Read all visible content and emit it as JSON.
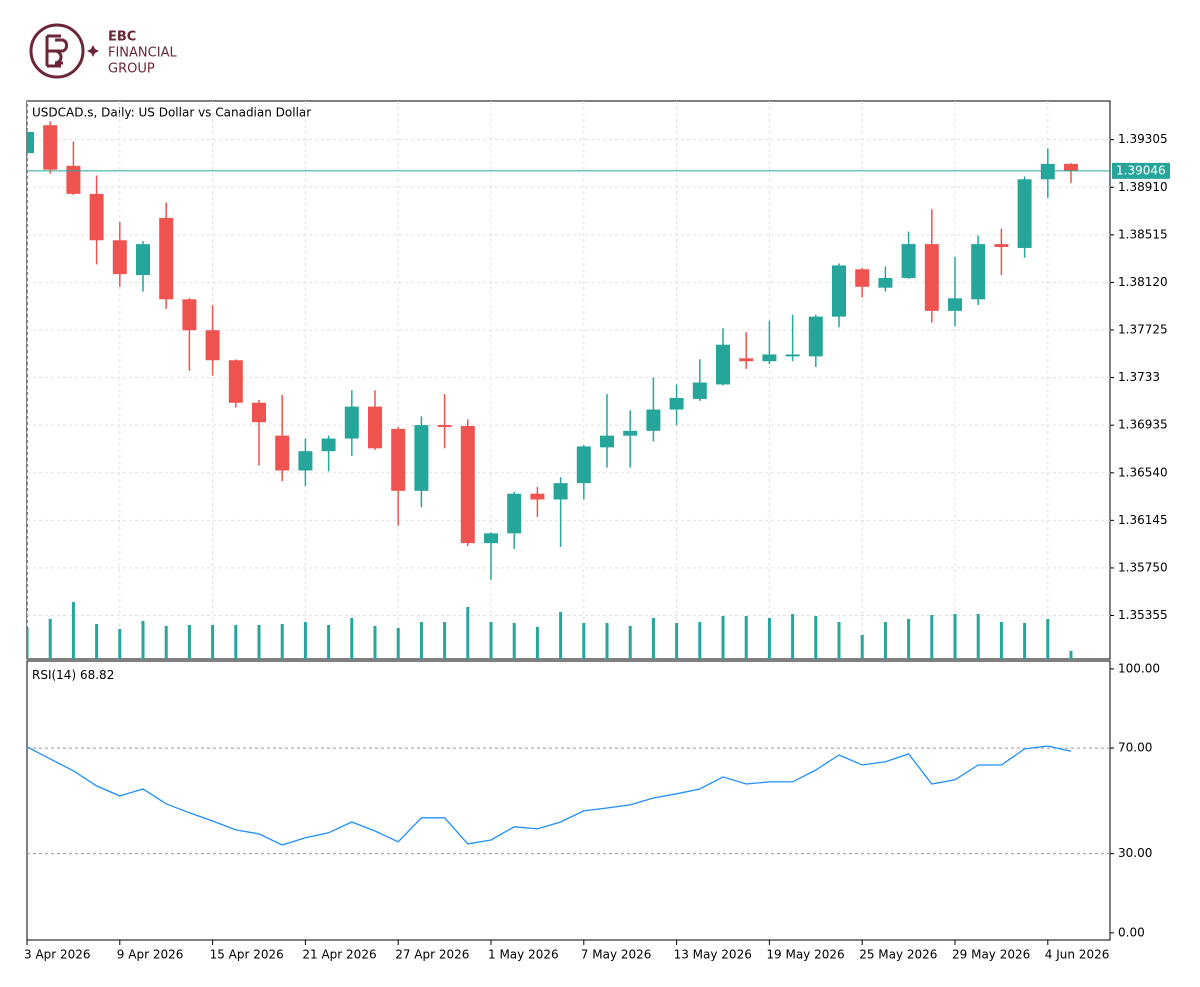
{
  "logo": {
    "lines": [
      "EBC",
      "FINANCIAL",
      "GROUP"
    ]
  },
  "chart_data": [
    {
      "type": "candlestick",
      "title": "USDCAD.s, Daily:  US Dollar vs Canadian Dollar",
      "categories": [
        "3 Apr 2026",
        null,
        null,
        null,
        "9 Apr 2026",
        null,
        null,
        null,
        "15 Apr 2026",
        null,
        null,
        null,
        "21 Apr 2026",
        null,
        null,
        null,
        "27 Apr 2026",
        null,
        null,
        null,
        "1 May 2026",
        null,
        null,
        null,
        "7 May 2026",
        null,
        null,
        null,
        "13 May 2026",
        null,
        null,
        null,
        "19 May 2026",
        null,
        null,
        null,
        "25 May 2026",
        null,
        null,
        null,
        "29 May 2026",
        null,
        null,
        null,
        "4 Jun 2026",
        null
      ],
      "open": [
        1.39193,
        1.39425,
        1.39088,
        1.38855,
        1.3847,
        1.38181,
        1.38655,
        1.3798,
        1.37723,
        1.37474,
        1.37121,
        1.36848,
        1.36559,
        1.36719,
        1.36824,
        1.37089,
        1.36904,
        1.3639,
        1.36936,
        1.36928,
        1.35956,
        1.36037,
        1.36366,
        1.36318,
        1.36454,
        1.36751,
        1.36848,
        1.36888,
        1.37065,
        1.37153,
        1.37273,
        1.3749,
        1.37466,
        1.37506,
        1.37506,
        1.37836,
        1.38229,
        1.38076,
        1.38157,
        1.38438,
        1.37884,
        1.3798,
        1.38438,
        1.38406,
        1.38976,
        1.39104
      ],
      "high": [
        1.39393,
        1.39458,
        1.39289,
        1.39008,
        1.38622,
        1.38462,
        1.38783,
        1.3799,
        1.37932,
        1.3748,
        1.37145,
        1.37185,
        1.36824,
        1.36848,
        1.37225,
        1.37225,
        1.3692,
        1.37008,
        1.37193,
        1.36984,
        1.36045,
        1.36382,
        1.36422,
        1.36503,
        1.3677,
        1.37193,
        1.37057,
        1.3733,
        1.37273,
        1.37482,
        1.37739,
        1.37707,
        1.37803,
        1.37852,
        1.37852,
        1.38277,
        1.3824,
        1.38253,
        1.38542,
        1.38727,
        1.38333,
        1.3851,
        1.38566,
        1.39,
        1.39233,
        1.3911
      ],
      "low": [
        1.39168,
        1.39024,
        1.38847,
        1.38269,
        1.38084,
        1.38044,
        1.379,
        1.37386,
        1.37346,
        1.37081,
        1.36599,
        1.3647,
        1.3643,
        1.36551,
        1.36679,
        1.3673,
        1.36101,
        1.36254,
        1.36743,
        1.35932,
        1.35651,
        1.35908,
        1.36173,
        1.35924,
        1.36318,
        1.36583,
        1.36583,
        1.368,
        1.36936,
        1.37137,
        1.37265,
        1.37402,
        1.37442,
        1.37466,
        1.37418,
        1.37747,
        1.37996,
        1.38044,
        1.38149,
        1.37787,
        1.37755,
        1.37932,
        1.38181,
        1.38325,
        1.38823,
        1.38944
      ],
      "close": [
        1.39369,
        1.39056,
        1.38855,
        1.3847,
        1.38189,
        1.38438,
        1.3798,
        1.37723,
        1.37474,
        1.37121,
        1.3696,
        1.36559,
        1.36719,
        1.36824,
        1.37089,
        1.36743,
        1.3639,
        1.36936,
        1.3692,
        1.35956,
        1.36037,
        1.36366,
        1.36318,
        1.36454,
        1.36759,
        1.36848,
        1.36888,
        1.37065,
        1.37161,
        1.37289,
        1.37603,
        1.37466,
        1.37522,
        1.37522,
        1.37836,
        1.38261,
        1.38084,
        1.38157,
        1.38438,
        1.37884,
        1.37988,
        1.38438,
        1.38414,
        1.38976,
        1.39104,
        1.39046
      ],
      "volume": {
        "color": "#26a69a",
        "values": [
          32,
          40,
          57,
          35,
          30,
          38,
          33,
          34,
          34,
          34,
          34,
          35,
          37,
          34,
          41,
          33,
          31,
          37,
          37,
          52,
          37,
          36,
          32,
          47,
          36,
          36,
          33,
          41,
          36,
          37,
          43,
          43,
          41,
          45,
          43,
          37,
          24,
          37,
          40,
          44,
          45,
          45,
          37,
          36,
          40,
          8
        ]
      },
      "up_color": "#26a69a",
      "down_color": "#ef5350",
      "ylim": [
        1.34994,
        1.39626
      ],
      "yticks": [
        1.39305,
        {
          "value": 1.3891,
          "label": "1.38910"
        },
        1.38515,
        {
          "value": 1.3812,
          "label": "1.38120"
        },
        1.37725,
        1.3733,
        1.36935,
        {
          "value": 1.3654,
          "label": "1.36540"
        },
        1.36145,
        {
          "value": 1.3575,
          "label": "1.35750"
        },
        1.35355
      ],
      "last_price": 1.39046,
      "grid": true
    },
    {
      "type": "line",
      "series": [
        {
          "name": "RSI(14)",
          "color": "#1e90ff",
          "values": [
            70.5,
            65.9,
            61.4,
            55.7,
            51.9,
            54.5,
            48.9,
            45.5,
            42.4,
            39.0,
            37.5,
            33.3,
            36.0,
            37.9,
            42.0,
            38.6,
            34.5,
            43.6,
            43.6,
            33.7,
            35.2,
            40.2,
            39.4,
            42.0,
            46.2,
            47.3,
            48.5,
            51.1,
            52.7,
            54.5,
            59.1,
            56.4,
            57.2,
            57.2,
            61.7,
            67.4,
            63.6,
            64.8,
            67.8,
            56.4,
            58.0,
            63.6,
            63.6,
            69.7,
            70.8,
            68.82
          ]
        }
      ],
      "ylim": [
        -2.7,
        103
      ],
      "yticks": [
        {
          "value": 100,
          "label": "100.00"
        },
        {
          "value": 70,
          "label": "70.00"
        },
        {
          "value": 30,
          "label": "30.00"
        },
        {
          "value": 0,
          "label": "0.00"
        }
      ],
      "levels": [
        70,
        30
      ]
    }
  ]
}
